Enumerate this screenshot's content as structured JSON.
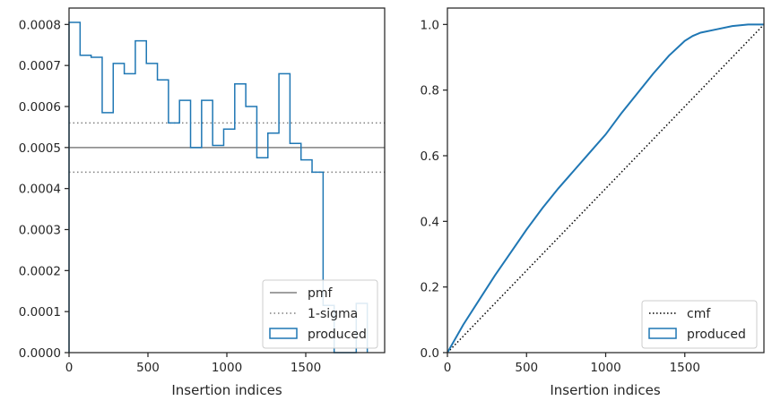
{
  "chart_data": [
    {
      "type": "histogram-step",
      "xlabel": "Insertion indices",
      "ylabel": "",
      "xlim": [
        0,
        2000
      ],
      "ylim": [
        0,
        0.00084
      ],
      "xticks": [
        0,
        500,
        1000,
        1500
      ],
      "yticks": [
        0,
        0.0001,
        0.0002,
        0.0003,
        0.0004,
        0.0005,
        0.0006,
        0.0007,
        0.0008
      ],
      "ytick_labels": [
        "0.0000",
        "0.0001",
        "0.0002",
        "0.0003",
        "0.0004",
        "0.0005",
        "0.0006",
        "0.0007",
        "0.0008"
      ],
      "xtick_labels": [
        "0",
        "500",
        "1000",
        "1500"
      ],
      "legend_position": "lower-right",
      "pmf": 0.0005,
      "sigma_upper": 0.00056,
      "sigma_lower": 0.00044,
      "bin_edges": [
        0,
        70,
        140,
        210,
        280,
        350,
        420,
        490,
        560,
        630,
        700,
        770,
        840,
        910,
        980,
        1050,
        1120,
        1190,
        1260,
        1330,
        1400,
        1470,
        1540,
        1610,
        1680,
        1750,
        1820,
        1890
      ],
      "series": [
        {
          "name": "produced",
          "values": [
            0.000805,
            0.000725,
            0.00072,
            0.000585,
            0.000705,
            0.00068,
            0.00076,
            0.000705,
            0.000665,
            0.00056,
            0.000615,
            0.0005,
            0.000615,
            0.000505,
            0.000545,
            0.000655,
            0.0006,
            0.000475,
            0.000535,
            0.00068,
            0.00051,
            0.00047,
            0.00044,
            0.000115,
            0.0,
            0.0,
            0.00012
          ]
        }
      ],
      "legend": [
        {
          "label": "pmf",
          "style": "solid",
          "color": "#808080"
        },
        {
          "label": "1-sigma",
          "style": "dotted",
          "color": "#808080"
        },
        {
          "label": "produced",
          "style": "patch",
          "color": "#1f77b4"
        }
      ]
    },
    {
      "type": "line",
      "xlabel": "Insertion indices",
      "ylabel": "",
      "xlim": [
        0,
        2000
      ],
      "ylim": [
        0,
        1.05
      ],
      "xticks": [
        0,
        500,
        1000,
        1500
      ],
      "yticks": [
        0.0,
        0.2,
        0.4,
        0.6,
        0.8,
        1.0
      ],
      "xtick_labels": [
        "0",
        "500",
        "1000",
        "1500"
      ],
      "ytick_labels": [
        "0.0",
        "0.2",
        "0.4",
        "0.6",
        "0.8",
        "1.0"
      ],
      "legend_position": "lower-right",
      "series": [
        {
          "name": "cmf",
          "style": "dotted",
          "color": "#000000",
          "x": [
            0,
            2000
          ],
          "y": [
            0,
            1.0
          ]
        },
        {
          "name": "produced",
          "style": "step",
          "color": "#1f77b4",
          "x": [
            0,
            100,
            200,
            300,
            400,
            500,
            600,
            700,
            800,
            900,
            1000,
            1100,
            1200,
            1300,
            1400,
            1500,
            1550,
            1600,
            1700,
            1800,
            1900,
            2000
          ],
          "y": [
            0,
            0.085,
            0.16,
            0.235,
            0.305,
            0.375,
            0.44,
            0.5,
            0.555,
            0.61,
            0.665,
            0.73,
            0.79,
            0.85,
            0.905,
            0.95,
            0.965,
            0.975,
            0.985,
            0.995,
            1.0,
            1.0
          ]
        }
      ],
      "legend": [
        {
          "label": "cmf",
          "style": "dotted",
          "color": "#000000"
        },
        {
          "label": "produced",
          "style": "patch",
          "color": "#1f77b4"
        }
      ]
    }
  ]
}
